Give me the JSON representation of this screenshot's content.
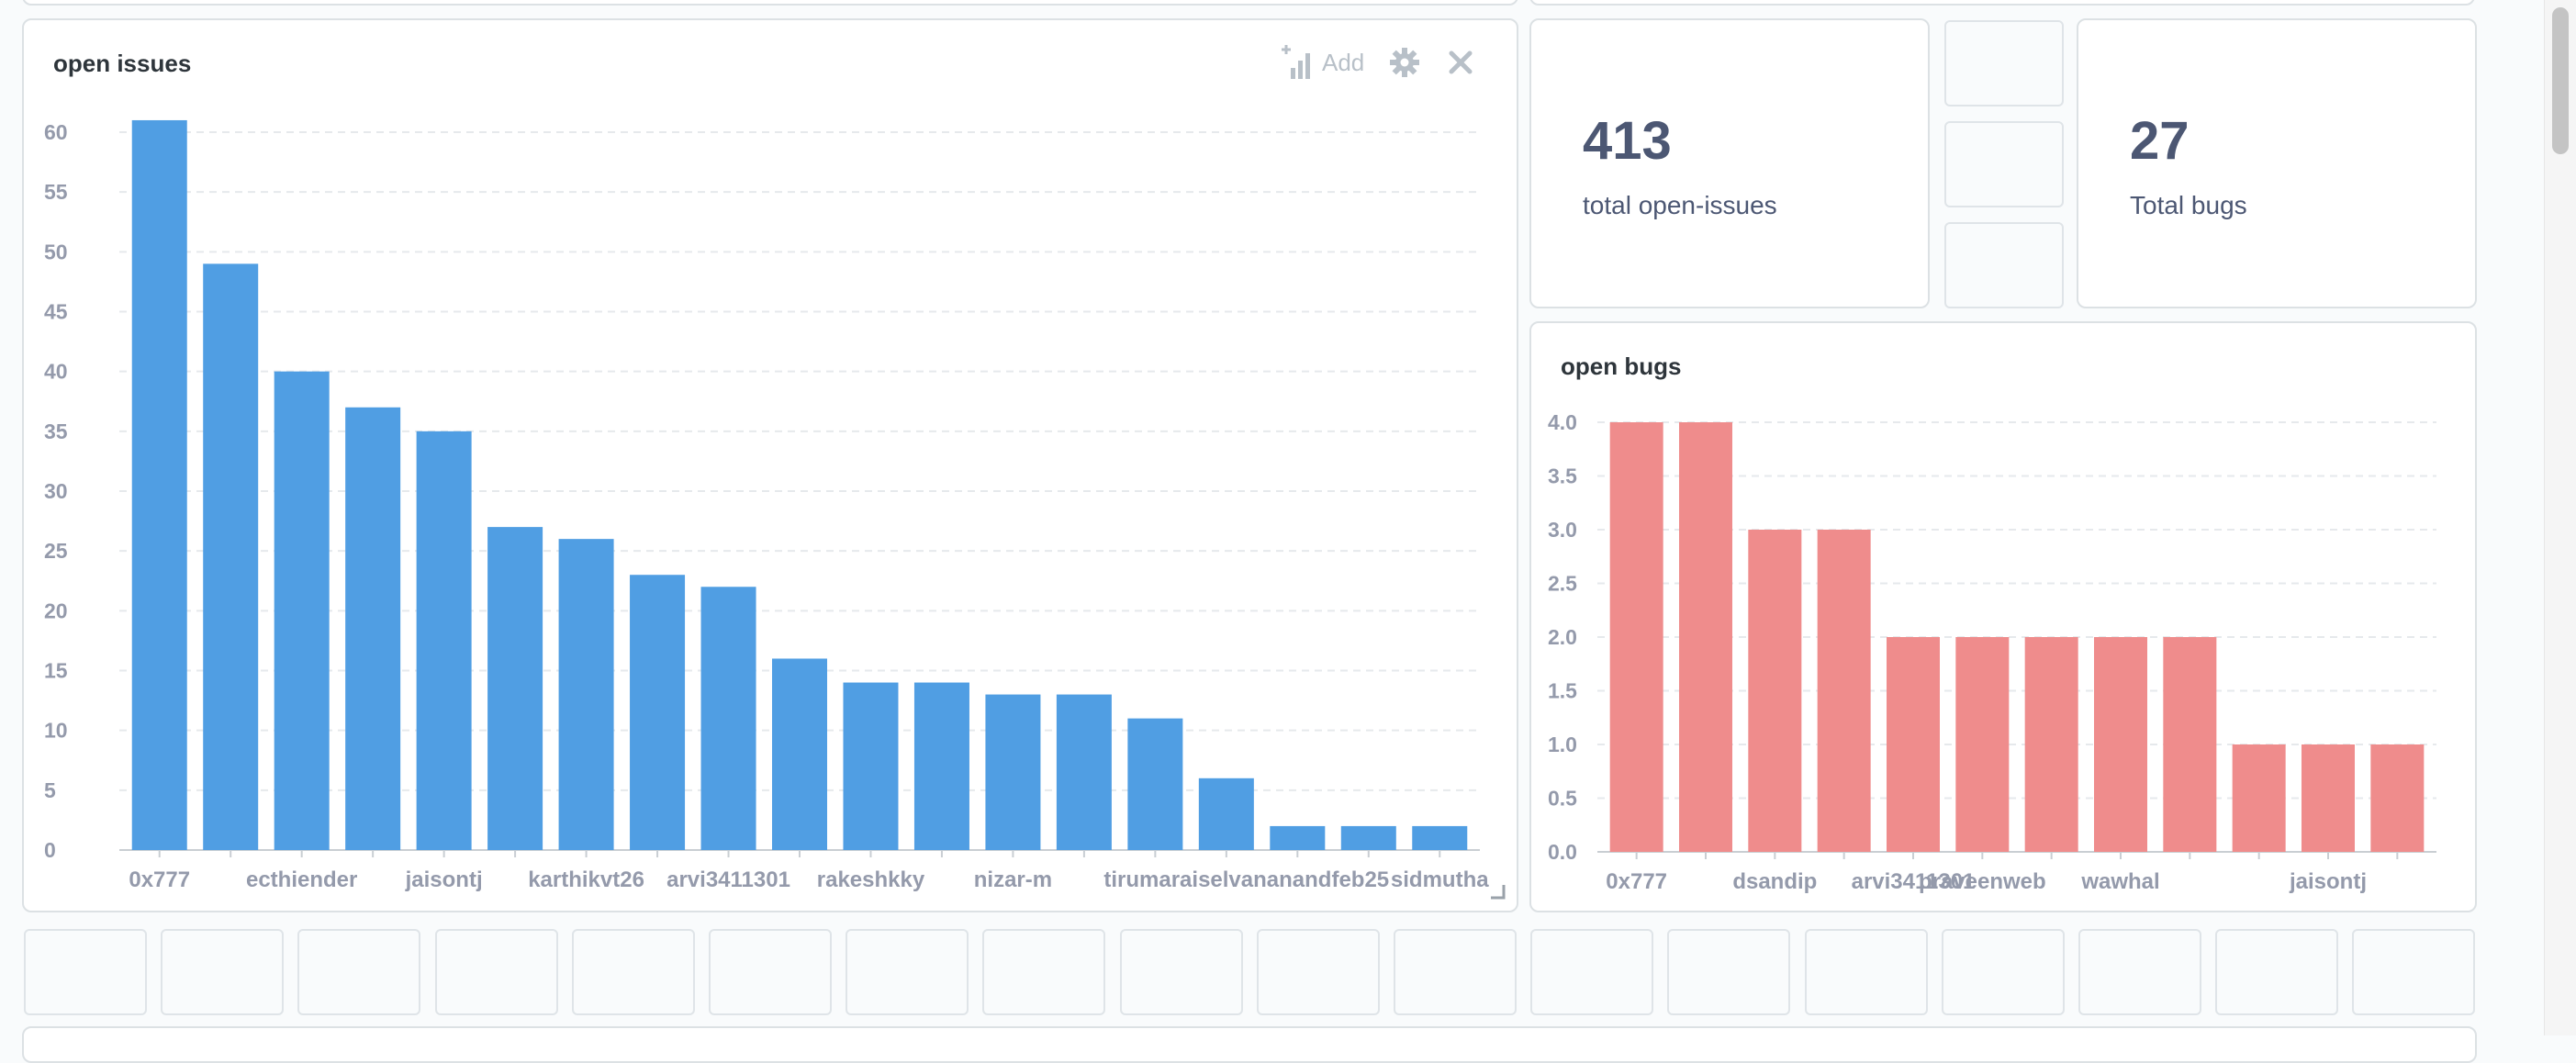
{
  "colors": {
    "issues_bar": "#509ee3",
    "bugs_bar": "#ef8c8c",
    "grid": "#e6e9ec",
    "axis": "#c9ced3"
  },
  "issues_card": {
    "title": "open issues",
    "add_label": "Add",
    "add_icon": "add-series-icon",
    "settings_icon": "gear-icon",
    "close_icon": "close-icon",
    "resize_icon": "resize-handle-icon"
  },
  "total_issues": {
    "value": "413",
    "label": "total open-issues"
  },
  "total_bugs": {
    "value": "27",
    "label": "Total bugs"
  },
  "bugs_card": {
    "title": "open bugs"
  },
  "chart_data": [
    {
      "type": "bar",
      "title": "open issues",
      "xlabel": "",
      "ylabel": "",
      "ylim": [
        0,
        60
      ],
      "yticks": [
        "0",
        "5",
        "10",
        "15",
        "20",
        "25",
        "30",
        "35",
        "40",
        "45",
        "50",
        "55",
        "60"
      ],
      "values": [
        61,
        49,
        40,
        37,
        35,
        27,
        26,
        23,
        22,
        16,
        14,
        14,
        13,
        13,
        11,
        6,
        2,
        2,
        2
      ],
      "categories": [
        "0x777",
        "",
        "ecthiender",
        "",
        "jaisontj",
        "",
        "karthikvt26",
        "",
        "arvi3411301",
        "",
        "rakeshkky",
        "",
        "nizar-m",
        "",
        "tirumaraiselvananandfeb25",
        "",
        "",
        "",
        "sidmutha"
      ],
      "grid": true
    },
    {
      "type": "bar",
      "title": "open bugs",
      "xlabel": "",
      "ylabel": "",
      "ylim": [
        0,
        4
      ],
      "yticks": [
        "0.0",
        "0.5",
        "1.0",
        "1.5",
        "2.0",
        "2.5",
        "3.0",
        "3.5",
        "4.0"
      ],
      "values": [
        4,
        4,
        3,
        3,
        2,
        2,
        2,
        2,
        2,
        1,
        1,
        1
      ],
      "categories": [
        "0x777",
        "",
        "dsandip",
        "",
        "arvi3411301",
        "praveenweb",
        "",
        "wawhal",
        "",
        "",
        "jaisontj",
        ""
      ],
      "grid": true
    }
  ]
}
